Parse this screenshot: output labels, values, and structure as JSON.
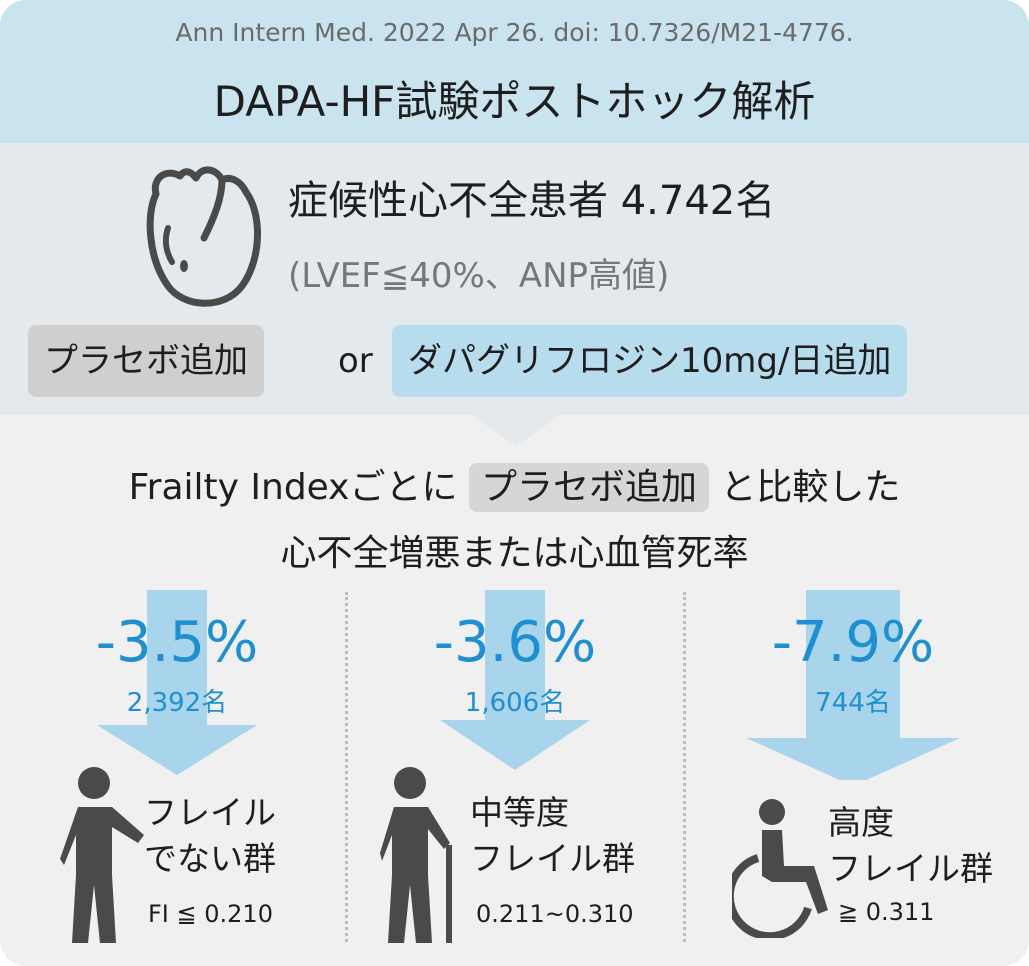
{
  "header": {
    "citation": "Ann Intern Med. 2022 Apr 26. doi: 10.7326/M21-4776.",
    "title": "DAPA-HF試験ポストホック解析"
  },
  "population": {
    "icon": "heart-icon",
    "main": "症候性心不全患者 4.742名",
    "sub": "(LVEF≦40%、ANP高値)"
  },
  "arms": {
    "placebo": "プラセボ追加",
    "or": "or",
    "dapagliflozin": "ダパグリフロジン10mg/日追加"
  },
  "comparison": {
    "line1_before": "Frailty Indexごとに",
    "line1_chip": "プラセボ追加",
    "line1_after": "と比較した",
    "line2": "心不全増悪または心血管死率"
  },
  "groups": [
    {
      "reduction": "-3.5%",
      "count": "2,392名",
      "label_line1": "フレイル",
      "label_line2": "でない群",
      "threshold": "FI ≦ 0.210",
      "icon": "walking-person-icon"
    },
    {
      "reduction": "-3.6%",
      "count": "1,606名",
      "label_line1": "中等度",
      "label_line2": "フレイル群",
      "threshold": "0.211~0.310",
      "icon": "person-with-cane-icon"
    },
    {
      "reduction": "-7.9%",
      "count": "744名",
      "label_line1": "高度",
      "label_line2": "フレイル群",
      "threshold": "≧ 0.311",
      "icon": "wheelchair-icon"
    }
  ],
  "colors": {
    "header_bg": "#c9e3ef",
    "accent_blue": "#1f8fd1",
    "arrow_blue": "#a8d4ec",
    "icon_dark": "#4a4a4a"
  }
}
